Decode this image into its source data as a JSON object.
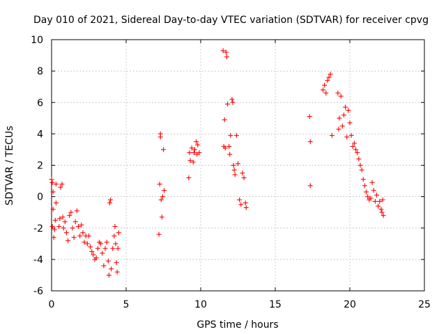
{
  "chart_data": {
    "type": "scatter",
    "title": "Day 010 of 2021, Sidereal Day-to-day VTEC variation (SDTVAR) for receiver cpvg",
    "xlabel": "GPS time / hours",
    "ylabel": "SDTVAR / TECUs",
    "xlim": [
      0,
      25
    ],
    "ylim": [
      -6,
      10
    ],
    "xticks": [
      0,
      5,
      10,
      15,
      20,
      25
    ],
    "yticks": [
      -6,
      -4,
      -2,
      0,
      2,
      4,
      6,
      8,
      10
    ],
    "grid": true,
    "marker": "+",
    "color": "#ff0000",
    "series": [
      {
        "name": "SDTVAR",
        "points": [
          [
            0.0,
            1.1
          ],
          [
            0.05,
            0.9
          ],
          [
            0.1,
            0.3
          ],
          [
            0.1,
            -0.8
          ],
          [
            0.05,
            -1.9
          ],
          [
            0.15,
            -2.6
          ],
          [
            0.2,
            -2.1
          ],
          [
            0.25,
            -1.5
          ],
          [
            0.3,
            -0.4
          ],
          [
            0.3,
            0.8
          ],
          [
            0.5,
            -1.9
          ],
          [
            0.55,
            -1.4
          ],
          [
            0.6,
            0.6
          ],
          [
            0.7,
            0.8
          ],
          [
            0.75,
            -1.3
          ],
          [
            0.8,
            -2.0
          ],
          [
            0.9,
            -1.6
          ],
          [
            1.0,
            -2.3
          ],
          [
            1.1,
            -2.8
          ],
          [
            1.2,
            -1.2
          ],
          [
            1.3,
            -1.0
          ],
          [
            1.4,
            -2.0
          ],
          [
            1.5,
            -2.6
          ],
          [
            1.6,
            -1.6
          ],
          [
            1.7,
            -0.9
          ],
          [
            1.8,
            -1.9
          ],
          [
            1.9,
            -2.5
          ],
          [
            2.0,
            -1.8
          ],
          [
            2.1,
            -2.3
          ],
          [
            2.2,
            -2.9
          ],
          [
            2.3,
            -2.5
          ],
          [
            2.4,
            -3.0
          ],
          [
            2.5,
            -2.5
          ],
          [
            2.6,
            -3.2
          ],
          [
            2.7,
            -3.5
          ],
          [
            2.8,
            -3.7
          ],
          [
            2.9,
            -4.0
          ],
          [
            3.0,
            -3.9
          ],
          [
            3.1,
            -3.3
          ],
          [
            3.2,
            -2.9
          ],
          [
            3.3,
            -3.0
          ],
          [
            3.4,
            -3.6
          ],
          [
            3.5,
            -4.4
          ],
          [
            3.6,
            -3.3
          ],
          [
            3.7,
            -2.9
          ],
          [
            3.8,
            -4.1
          ],
          [
            3.85,
            -5.0
          ],
          [
            3.9,
            -0.4
          ],
          [
            3.95,
            -0.2
          ],
          [
            4.0,
            -4.6
          ],
          [
            4.1,
            -3.3
          ],
          [
            4.2,
            -2.5
          ],
          [
            4.25,
            -1.9
          ],
          [
            4.3,
            -3.0
          ],
          [
            4.35,
            -4.2
          ],
          [
            4.4,
            -4.8
          ],
          [
            4.45,
            -3.3
          ],
          [
            4.5,
            -2.3
          ],
          [
            7.2,
            -2.4
          ],
          [
            7.25,
            0.8
          ],
          [
            7.3,
            4.0
          ],
          [
            7.3,
            3.8
          ],
          [
            7.35,
            -0.2
          ],
          [
            7.4,
            -1.3
          ],
          [
            7.45,
            0.0
          ],
          [
            7.5,
            3.0
          ],
          [
            7.55,
            0.4
          ],
          [
            9.2,
            1.2
          ],
          [
            9.25,
            2.8
          ],
          [
            9.3,
            2.3
          ],
          [
            9.4,
            3.1
          ],
          [
            9.5,
            2.2
          ],
          [
            9.55,
            2.8
          ],
          [
            9.6,
            3.0
          ],
          [
            9.7,
            3.5
          ],
          [
            9.75,
            2.7
          ],
          [
            9.8,
            3.3
          ],
          [
            9.9,
            2.8
          ],
          [
            11.5,
            9.3
          ],
          [
            11.55,
            3.2
          ],
          [
            11.6,
            4.9
          ],
          [
            11.65,
            3.1
          ],
          [
            11.7,
            9.2
          ],
          [
            11.75,
            8.9
          ],
          [
            11.8,
            5.9
          ],
          [
            11.9,
            3.2
          ],
          [
            11.95,
            2.7
          ],
          [
            12.0,
            3.9
          ],
          [
            12.1,
            6.2
          ],
          [
            12.15,
            6.0
          ],
          [
            12.2,
            2.0
          ],
          [
            12.25,
            1.7
          ],
          [
            12.3,
            1.4
          ],
          [
            12.4,
            3.9
          ],
          [
            12.5,
            2.1
          ],
          [
            12.6,
            -0.2
          ],
          [
            12.7,
            -0.5
          ],
          [
            12.8,
            1.5
          ],
          [
            12.9,
            1.2
          ],
          [
            13.0,
            -0.4
          ],
          [
            13.05,
            -0.7
          ],
          [
            17.3,
            5.1
          ],
          [
            17.35,
            3.5
          ],
          [
            17.35,
            0.7
          ],
          [
            18.2,
            6.8
          ],
          [
            18.3,
            7.1
          ],
          [
            18.4,
            6.6
          ],
          [
            18.5,
            7.4
          ],
          [
            18.6,
            7.6
          ],
          [
            18.7,
            7.8
          ],
          [
            18.8,
            3.9
          ],
          [
            19.2,
            6.6
          ],
          [
            19.25,
            4.3
          ],
          [
            19.3,
            5.0
          ],
          [
            19.4,
            6.4
          ],
          [
            19.5,
            4.5
          ],
          [
            19.6,
            5.2
          ],
          [
            19.7,
            5.7
          ],
          [
            19.8,
            3.8
          ],
          [
            19.9,
            5.5
          ],
          [
            20.0,
            4.7
          ],
          [
            20.1,
            3.9
          ],
          [
            20.2,
            3.2
          ],
          [
            20.3,
            3.4
          ],
          [
            20.4,
            3.0
          ],
          [
            20.5,
            2.8
          ],
          [
            20.6,
            2.4
          ],
          [
            20.7,
            2.0
          ],
          [
            20.8,
            1.7
          ],
          [
            20.9,
            1.1
          ],
          [
            21.0,
            0.7
          ],
          [
            21.1,
            0.3
          ],
          [
            21.2,
            0.0
          ],
          [
            21.3,
            -0.2
          ],
          [
            21.4,
            -0.1
          ],
          [
            21.5,
            0.9
          ],
          [
            21.6,
            0.4
          ],
          [
            21.7,
            -0.3
          ],
          [
            21.8,
            0.1
          ],
          [
            21.9,
            -0.6
          ],
          [
            22.0,
            -0.3
          ],
          [
            22.1,
            -0.8
          ],
          [
            22.15,
            -1.0
          ],
          [
            22.2,
            -0.2
          ],
          [
            22.25,
            -1.2
          ]
        ]
      }
    ]
  }
}
